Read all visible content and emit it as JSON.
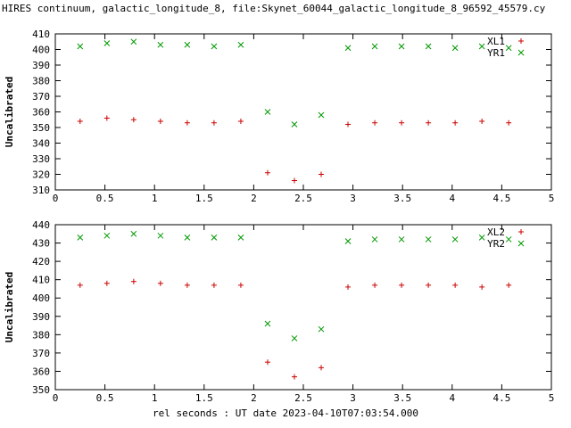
{
  "figure": {
    "title": "HIRES continuum, galactic_longitude_8, file:Skynet_60044_galactic_longitude_8_96592_45579.cy",
    "xlabel": "rel seconds : UT date 2023-04-10T07:03:54.000"
  },
  "chart_data": [
    {
      "type": "scatter",
      "panel": "top",
      "title": "",
      "xlabel": "",
      "ylabel": "Uncalibrated",
      "xlim": [
        0,
        5
      ],
      "ylim": [
        310,
        410
      ],
      "xtick_step": 0.5,
      "ytick_step": 10,
      "grid": false,
      "legend_position": "top-right",
      "x": [
        0.25,
        0.52,
        0.79,
        1.06,
        1.33,
        1.6,
        1.87,
        2.14,
        2.41,
        2.68,
        2.95,
        3.22,
        3.49,
        3.76,
        4.03,
        4.3,
        4.57
      ],
      "series": [
        {
          "name": "XL1",
          "marker": "plus",
          "color": "#cc0000",
          "values": [
            354,
            356,
            355,
            354,
            353,
            353,
            354,
            321,
            316,
            320,
            352,
            353,
            353,
            353,
            353,
            354,
            353
          ]
        },
        {
          "name": "YR1",
          "marker": "cross",
          "color": "#009900",
          "values": [
            402,
            404,
            405,
            403,
            403,
            402,
            403,
            360,
            352,
            358,
            401,
            402,
            402,
            402,
            401,
            402,
            401
          ]
        }
      ]
    },
    {
      "type": "scatter",
      "panel": "bottom",
      "title": "",
      "xlabel": "",
      "ylabel": "Uncalibrated",
      "xlim": [
        0,
        5
      ],
      "ylim": [
        350,
        440
      ],
      "xtick_step": 0.5,
      "ytick_step": 10,
      "grid": false,
      "legend_position": "top-right",
      "x": [
        0.25,
        0.52,
        0.79,
        1.06,
        1.33,
        1.6,
        1.87,
        2.14,
        2.41,
        2.68,
        2.95,
        3.22,
        3.49,
        3.76,
        4.03,
        4.3,
        4.57
      ],
      "series": [
        {
          "name": "XL2",
          "marker": "plus",
          "color": "#cc0000",
          "values": [
            407,
            408,
            409,
            408,
            407,
            407,
            407,
            365,
            357,
            362,
            406,
            407,
            407,
            407,
            407,
            406,
            407
          ]
        },
        {
          "name": "YR2",
          "marker": "cross",
          "color": "#009900",
          "values": [
            433,
            434,
            435,
            434,
            433,
            433,
            433,
            386,
            378,
            383,
            431,
            432,
            432,
            432,
            432,
            433,
            432
          ]
        }
      ]
    }
  ]
}
